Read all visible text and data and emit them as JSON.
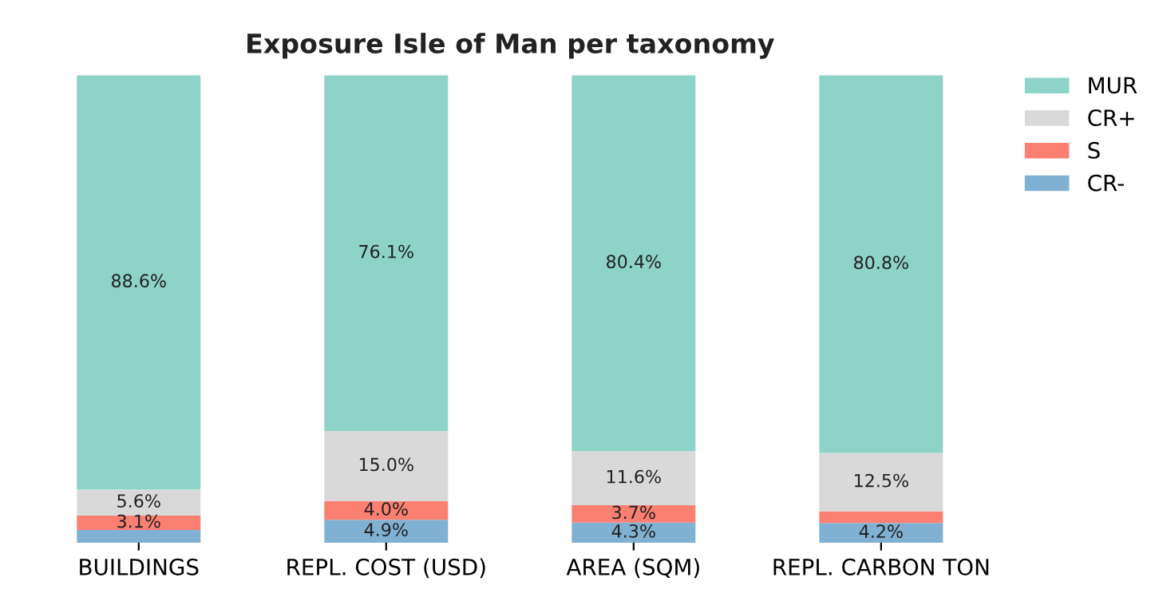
{
  "chart_data": {
    "type": "bar",
    "title": "Exposure Isle of Man per taxonomy",
    "categories": [
      "BUILDINGS",
      "REPL. COST (USD)",
      "AREA (SQM)",
      "REPL. CARBON TON"
    ],
    "stacked": true,
    "tick_labels": "x",
    "legend": "top right",
    "grid": false,
    "series": [
      {
        "name": "CR-",
        "color": "#80b1d3",
        "values": [
          2.7,
          4.9,
          4.3,
          4.2
        ],
        "value_labels": [
          null,
          "4.9%",
          "4.3%",
          "4.2%"
        ]
      },
      {
        "name": "S",
        "color": "#fb8072",
        "values": [
          3.1,
          4.0,
          3.7,
          2.5
        ],
        "value_labels": [
          "3.1%",
          "4.0%",
          "3.7%",
          null
        ]
      },
      {
        "name": "CR+",
        "color": "#d9d9d9",
        "values": [
          5.6,
          15.0,
          11.6,
          12.5
        ],
        "value_labels": [
          "5.6%",
          "15.0%",
          "11.6%",
          "12.5%"
        ]
      },
      {
        "name": "MUR",
        "color": "#8dd3c7",
        "values": [
          88.6,
          76.1,
          80.4,
          80.8
        ],
        "value_labels": [
          "88.6%",
          "76.1%",
          "80.4%",
          "80.8%"
        ]
      }
    ]
  }
}
